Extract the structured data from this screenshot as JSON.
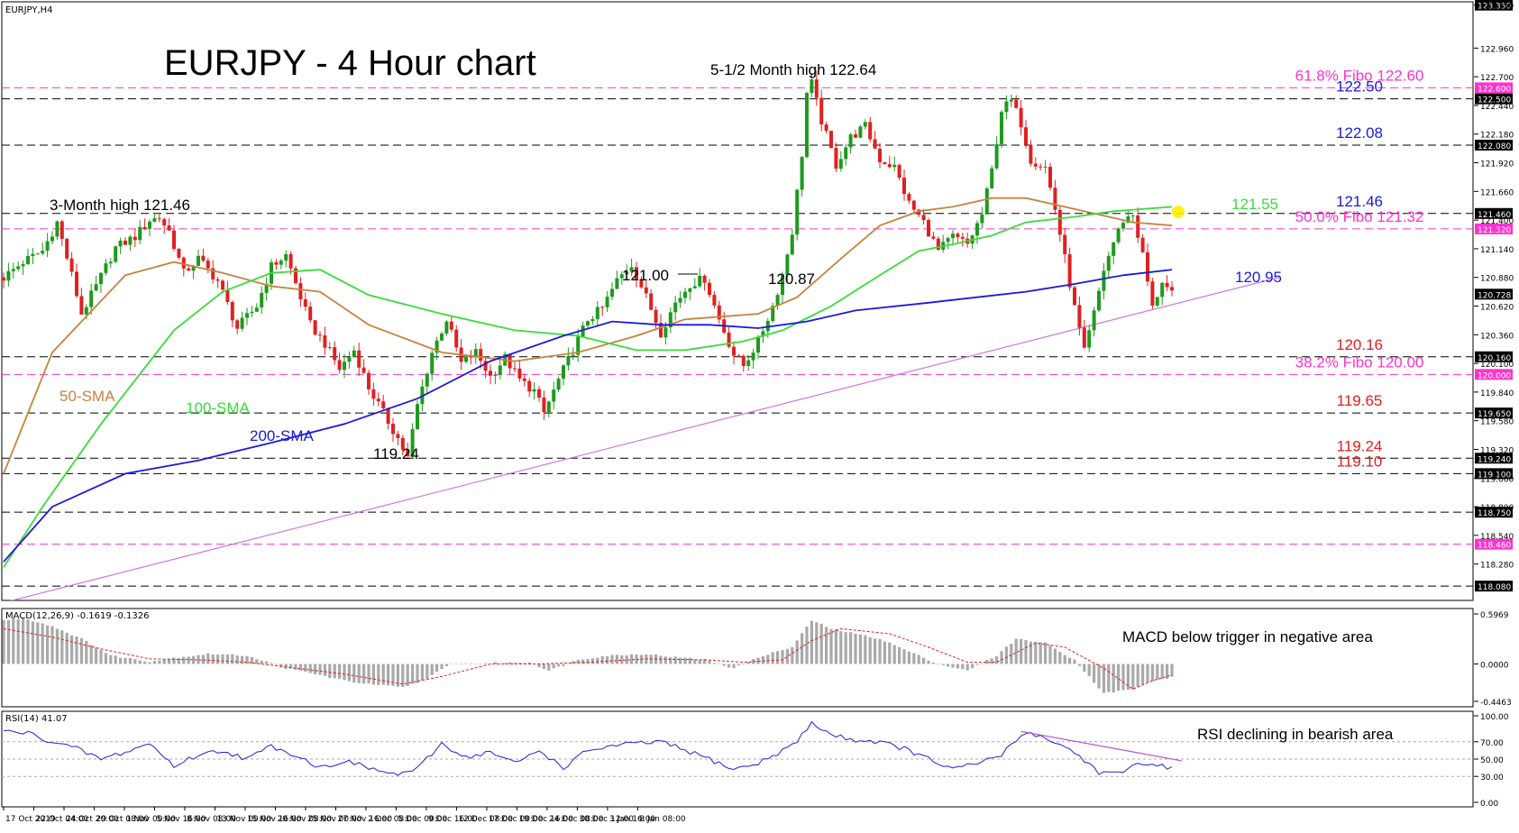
{
  "symbol_label": "EURJPY,H4",
  "title": "EURJPY - 4 Hour chart",
  "chart_data": [
    {
      "type": "candlestick",
      "title": "EURJPY - 4 Hour chart",
      "ylim": [
        117.95,
        123.38
      ],
      "x_ticks": [
        "17 Oct 2019",
        "22 Oct 04:00",
        "24 Oct 20:00",
        "29 Oct 08:00",
        "1 Nov 00:00",
        "5 Nov 16:00",
        "8 Nov 08:00",
        "13 Nov 00:00",
        "15 Nov 16:00",
        "20 Nov 08:00",
        "25 Nov 00:00",
        "27 Nov 16:00",
        "2 Dec 08:00",
        "5 Dec 00:00",
        "9 Dec 16:00",
        "12 Dec 08:00",
        "17 Dec 00:00",
        "19 Dec 16:00",
        "24 Dec 08:00",
        "30 Dec 12:00",
        "3 Jan 16:00",
        "8 Jan 08:00"
      ],
      "y_ticks": [
        "123.350",
        "122.960",
        "122.700",
        "122.440",
        "122.180",
        "121.920",
        "121.660",
        "121.400",
        "121.140",
        "120.880",
        "120.620",
        "120.360",
        "120.100",
        "119.840",
        "119.580",
        "119.320",
        "119.060",
        "118.800",
        "118.540",
        "118.280"
      ],
      "price_path": [
        [
          0,
          120.88
        ],
        [
          4,
          121.02
        ],
        [
          8,
          121.12
        ],
        [
          11,
          121.38
        ],
        [
          14,
          120.9
        ],
        [
          16,
          120.55
        ],
        [
          19,
          120.8
        ],
        [
          23,
          121.15
        ],
        [
          27,
          121.25
        ],
        [
          30,
          121.4
        ],
        [
          32,
          121.42
        ],
        [
          34,
          121.3
        ],
        [
          37,
          120.92
        ],
        [
          40,
          121.05
        ],
        [
          44,
          120.85
        ],
        [
          48,
          120.42
        ],
        [
          52,
          120.62
        ],
        [
          55,
          120.98
        ],
        [
          58,
          121.08
        ],
        [
          61,
          120.7
        ],
        [
          63,
          120.45
        ],
        [
          66,
          120.28
        ],
        [
          69,
          120.05
        ],
        [
          72,
          120.22
        ],
        [
          75,
          119.88
        ],
        [
          78,
          119.65
        ],
        [
          81,
          119.42
        ],
        [
          83,
          119.24
        ],
        [
          85,
          119.72
        ],
        [
          88,
          120.2
        ],
        [
          91,
          120.5
        ],
        [
          94,
          120.1
        ],
        [
          97,
          120.2
        ],
        [
          100,
          119.98
        ],
        [
          103,
          120.15
        ],
        [
          106,
          119.95
        ],
        [
          109,
          119.85
        ],
        [
          111,
          119.65
        ],
        [
          114,
          119.95
        ],
        [
          117,
          120.22
        ],
        [
          120,
          120.5
        ],
        [
          123,
          120.6
        ],
        [
          126,
          120.85
        ],
        [
          129,
          121.0
        ],
        [
          132,
          120.7
        ],
        [
          135,
          120.38
        ],
        [
          138,
          120.65
        ],
        [
          141,
          120.82
        ],
        [
          144,
          120.87
        ],
        [
          147,
          120.5
        ],
        [
          150,
          120.18
        ],
        [
          152,
          120.08
        ],
        [
          155,
          120.3
        ],
        [
          158,
          120.62
        ],
        [
          160,
          120.9
        ],
        [
          162,
          121.3
        ],
        [
          164,
          122.0
        ],
        [
          165,
          122.55
        ],
        [
          166,
          122.64
        ],
        [
          168,
          122.3
        ],
        [
          171,
          121.9
        ],
        [
          174,
          122.15
        ],
        [
          177,
          122.25
        ],
        [
          180,
          121.95
        ],
        [
          183,
          121.88
        ],
        [
          186,
          121.55
        ],
        [
          189,
          121.38
        ],
        [
          192,
          121.12
        ],
        [
          195,
          121.25
        ],
        [
          198,
          121.18
        ],
        [
          201,
          121.45
        ],
        [
          203,
          121.85
        ],
        [
          205,
          122.4
        ],
        [
          207,
          122.48
        ],
        [
          209,
          122.28
        ],
        [
          211,
          121.95
        ],
        [
          214,
          121.88
        ],
        [
          216,
          121.5
        ],
        [
          218,
          121.05
        ],
        [
          220,
          120.6
        ],
        [
          222,
          120.2
        ],
        [
          224,
          120.55
        ],
        [
          226,
          120.95
        ],
        [
          228,
          121.2
        ],
        [
          230,
          121.4
        ],
        [
          232,
          121.45
        ],
        [
          234,
          121.08
        ],
        [
          236,
          120.6
        ],
        [
          238,
          120.85
        ],
        [
          240,
          120.72
        ]
      ],
      "series": [
        {
          "name": "50-SMA",
          "color": "#c8823f",
          "x": [
            0,
            10,
            25,
            35,
            45,
            55,
            65,
            75,
            90,
            105,
            118,
            130,
            140,
            155,
            163,
            172,
            180,
            188,
            195,
            203,
            210,
            220,
            232,
            240
          ],
          "values": [
            119.1,
            120.2,
            120.9,
            121.02,
            120.92,
            120.8,
            120.75,
            120.45,
            120.2,
            120.12,
            120.2,
            120.35,
            120.5,
            120.55,
            120.7,
            121.05,
            121.35,
            121.48,
            121.52,
            121.6,
            121.6,
            121.5,
            121.38,
            121.35
          ]
        },
        {
          "name": "100-SMA",
          "color": "#3adc3a",
          "x": [
            0,
            8,
            20,
            35,
            45,
            55,
            65,
            75,
            90,
            105,
            118,
            130,
            140,
            152,
            160,
            170,
            180,
            188,
            195,
            203,
            210,
            220,
            228,
            240
          ],
          "values": [
            118.25,
            118.8,
            119.55,
            120.4,
            120.75,
            120.92,
            120.95,
            120.72,
            120.55,
            120.4,
            120.35,
            120.22,
            120.22,
            120.3,
            120.4,
            120.62,
            120.9,
            121.12,
            121.18,
            121.26,
            121.38,
            121.43,
            121.48,
            121.52
          ]
        },
        {
          "name": "200-SMA",
          "color": "#1a1adc",
          "x": [
            0,
            10,
            25,
            40,
            55,
            70,
            85,
            100,
            115,
            125,
            135,
            145,
            155,
            165,
            175,
            190,
            200,
            210,
            220,
            230,
            240
          ],
          "values": [
            118.3,
            118.8,
            119.1,
            119.22,
            119.38,
            119.55,
            119.78,
            120.12,
            120.35,
            120.48,
            120.45,
            120.45,
            120.42,
            120.48,
            120.58,
            120.65,
            120.7,
            120.75,
            120.82,
            120.9,
            120.95
          ]
        }
      ],
      "levels": [
        {
          "value": 123.35,
          "label": "",
          "tag": "123.350",
          "kind": "grid"
        },
        {
          "value": 122.6,
          "label": "61.8% Fibo 122.60",
          "tag": "122.600",
          "kind": "fibo"
        },
        {
          "value": 122.5,
          "label": "122.50",
          "tag": "122.500",
          "kind": "res"
        },
        {
          "value": 122.08,
          "label": "122.08",
          "tag": "122.080",
          "kind": "res"
        },
        {
          "value": 121.46,
          "label": "121.46",
          "tag": "121.460",
          "kind": "res"
        },
        {
          "value": 121.32,
          "label": "50.0% Fibo 121.32",
          "tag": "121.320",
          "kind": "fibo"
        },
        {
          "value": 120.16,
          "label": "120.16",
          "tag": "120.160",
          "kind": "sup"
        },
        {
          "value": 120.0,
          "label": "38.2% Fibo 120.00",
          "tag": "120.000",
          "kind": "fibo"
        },
        {
          "value": 119.65,
          "label": "119.65",
          "tag": "119.650",
          "kind": "sup"
        },
        {
          "value": 119.24,
          "label": "119.24",
          "tag": "119.240",
          "kind": "sup"
        },
        {
          "value": 119.1,
          "label": "119.10",
          "tag": "119.100",
          "kind": "sup"
        },
        {
          "value": 118.75,
          "label": "",
          "tag": "118.750",
          "kind": "plain"
        },
        {
          "value": 118.46,
          "label": "",
          "tag": "118.460",
          "kind": "fibo"
        },
        {
          "value": 118.08,
          "label": "",
          "tag": "118.080",
          "kind": "plain"
        }
      ],
      "current_price": {
        "value": 120.728,
        "tag": "120.728"
      },
      "sma_value_labels": [
        "121.55",
        "120.95"
      ],
      "annotations": [
        "5-1/2 Month high 122.64",
        "3-Month high 121.46",
        "121.00",
        "120.87",
        "119.24",
        "50-SMA",
        "100-SMA",
        "200-SMA"
      ],
      "trendline": {
        "from": [
          0,
          117.93
        ],
        "to": [
          262,
          120.88
        ]
      }
    },
    {
      "type": "bar",
      "title": "MACD(12,26,9) -0.1619 -0.1326",
      "ylim": [
        -0.4463,
        0.5969
      ],
      "y_ticks": [
        "0.5969",
        "0.0000",
        "-0.4463"
      ],
      "histogram_path": [
        [
          0,
          0.52
        ],
        [
          4,
          0.55
        ],
        [
          10,
          0.45
        ],
        [
          16,
          0.3
        ],
        [
          22,
          0.1
        ],
        [
          30,
          0.03
        ],
        [
          36,
          0.08
        ],
        [
          42,
          0.12
        ],
        [
          50,
          0.1
        ],
        [
          58,
          -0.05
        ],
        [
          64,
          -0.12
        ],
        [
          70,
          -0.2
        ],
        [
          75,
          -0.24
        ],
        [
          82,
          -0.28
        ],
        [
          86,
          -0.2
        ],
        [
          92,
          0.0
        ],
        [
          100,
          0.01
        ],
        [
          108,
          0.02
        ],
        [
          112,
          -0.08
        ],
        [
          118,
          0.05
        ],
        [
          124,
          0.1
        ],
        [
          132,
          0.12
        ],
        [
          138,
          0.08
        ],
        [
          144,
          0.05
        ],
        [
          150,
          -0.05
        ],
        [
          156,
          0.1
        ],
        [
          162,
          0.2
        ],
        [
          166,
          0.52
        ],
        [
          170,
          0.42
        ],
        [
          180,
          0.3
        ],
        [
          186,
          0.15
        ],
        [
          192,
          0.0
        ],
        [
          198,
          -0.08
        ],
        [
          204,
          0.1
        ],
        [
          208,
          0.3
        ],
        [
          214,
          0.25
        ],
        [
          220,
          0.05
        ],
        [
          226,
          -0.35
        ],
        [
          232,
          -0.3
        ],
        [
          236,
          -0.2
        ],
        [
          240,
          -0.16
        ]
      ],
      "signal_path": [
        [
          0,
          0.42
        ],
        [
          10,
          0.32
        ],
        [
          20,
          0.18
        ],
        [
          30,
          0.06
        ],
        [
          40,
          0.05
        ],
        [
          50,
          0.02
        ],
        [
          60,
          -0.05
        ],
        [
          70,
          -0.12
        ],
        [
          82,
          -0.24
        ],
        [
          90,
          -0.15
        ],
        [
          100,
          0.0
        ],
        [
          110,
          0.0
        ],
        [
          120,
          0.02
        ],
        [
          132,
          0.06
        ],
        [
          144,
          0.05
        ],
        [
          152,
          0.02
        ],
        [
          160,
          0.05
        ],
        [
          166,
          0.28
        ],
        [
          172,
          0.42
        ],
        [
          182,
          0.36
        ],
        [
          190,
          0.2
        ],
        [
          198,
          0.02
        ],
        [
          204,
          0.02
        ],
        [
          212,
          0.25
        ],
        [
          218,
          0.2
        ],
        [
          226,
          -0.05
        ],
        [
          232,
          -0.3
        ],
        [
          236,
          -0.2
        ],
        [
          240,
          -0.13
        ]
      ],
      "annotation": "MACD below trigger in negative area"
    },
    {
      "type": "line",
      "title": "RSI(14) 41.07",
      "ylim": [
        0,
        100
      ],
      "y_ticks": [
        "100.00",
        "70.00",
        "50.00",
        "30.00",
        "0.00"
      ],
      "series": [
        {
          "name": "RSI(14)",
          "color": "#2020e0",
          "x": [
            0,
            5,
            10,
            15,
            20,
            25,
            30,
            35,
            40,
            45,
            50,
            55,
            60,
            65,
            70,
            75,
            80,
            85,
            90,
            95,
            100,
            105,
            110,
            115,
            120,
            125,
            130,
            135,
            140,
            145,
            150,
            155,
            160,
            163,
            166,
            170,
            175,
            180,
            185,
            190,
            195,
            200,
            205,
            210,
            215,
            220,
            225,
            230,
            233,
            236,
            240
          ],
          "values": [
            82,
            80,
            70,
            62,
            50,
            58,
            68,
            42,
            55,
            60,
            50,
            65,
            55,
            40,
            48,
            40,
            32,
            38,
            68,
            52,
            58,
            45,
            60,
            40,
            60,
            65,
            68,
            70,
            60,
            50,
            38,
            45,
            60,
            70,
            92,
            78,
            72,
            70,
            62,
            50,
            38,
            45,
            55,
            82,
            72,
            58,
            35,
            32,
            48,
            42,
            41
          ]
        }
      ],
      "guides": [
        70,
        50,
        30
      ],
      "annotation": "RSI declining in bearish area"
    }
  ]
}
